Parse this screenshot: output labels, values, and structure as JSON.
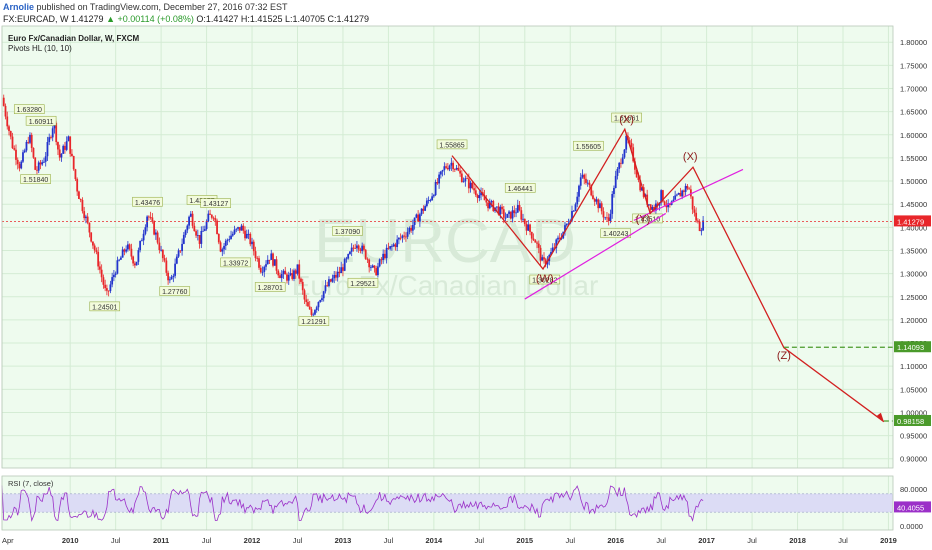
{
  "header": {
    "author": "Arnolie",
    "published": "published on TradingView.com, December 27, 2016 07:32 EST",
    "symbol_line": "FX:EURCAD, W  1.41279",
    "change": "▲ +0.00114 (+0.08%)",
    "ohlc": "O:1.41427 H:1.41525 L:1.40705 C:1.41279"
  },
  "legend": {
    "title": "Euro Fx/Canadian Dollar, W, FXCM",
    "indicator": "Pivots HL (10, 10)"
  },
  "watermark": {
    "symbol": "EURCAD",
    "name": "Euro Fx/Canadian Dollar"
  },
  "colors": {
    "chart_bg": "#eefbee",
    "up": "#2233cc",
    "down": "#e8262a",
    "wave": "#d22020",
    "trend": "#e020e0",
    "price_tag": "#e8262a",
    "target": "#4a9a2a",
    "rsi_line": "#9b30c8",
    "rsi_band": "#dcdcf5"
  },
  "chart_data": [
    {
      "type": "candlestick",
      "title": "Euro Fx/Canadian Dollar, W, FXCM",
      "price_scale": [
        0.9,
        1.8,
        0.05
      ],
      "y_ticks": [
        "1.80000",
        "1.75000",
        "1.70000",
        "1.65000",
        "1.60000",
        "1.55000",
        "1.50000",
        "1.45000",
        "1.40000",
        "1.35000",
        "1.30000",
        "1.25000",
        "1.20000",
        "1.15000",
        "1.10000",
        "1.05000",
        "1.00000",
        "0.95000",
        "0.90000"
      ],
      "x_ticks": [
        "Apr",
        "2010",
        "Jul",
        "2011",
        "Jul",
        "2012",
        "Jul",
        "2013",
        "Jul",
        "2014",
        "Jul",
        "2015",
        "Jul",
        "2016",
        "Jul",
        "2017",
        "Jul",
        "2018",
        "Jul",
        "2019"
      ],
      "close_path_anchors": [
        [
          2009.25,
          1.68
        ],
        [
          2009.36,
          1.58
        ],
        [
          2009.45,
          1.53
        ],
        [
          2009.55,
          1.6
        ],
        [
          2009.62,
          1.52
        ],
        [
          2009.72,
          1.55
        ],
        [
          2009.82,
          1.63
        ],
        [
          2009.88,
          1.55
        ],
        [
          2009.98,
          1.59
        ],
        [
          2010.08,
          1.48
        ],
        [
          2010.2,
          1.4
        ],
        [
          2010.3,
          1.33
        ],
        [
          2010.4,
          1.25
        ],
        [
          2010.5,
          1.31
        ],
        [
          2010.62,
          1.36
        ],
        [
          2010.72,
          1.32
        ],
        [
          2010.85,
          1.43
        ],
        [
          2010.95,
          1.38
        ],
        [
          2011.05,
          1.31
        ],
        [
          2011.1,
          1.28
        ],
        [
          2011.22,
          1.36
        ],
        [
          2011.32,
          1.43
        ],
        [
          2011.42,
          1.37
        ],
        [
          2011.52,
          1.42
        ],
        [
          2011.58,
          1.43
        ],
        [
          2011.66,
          1.35
        ],
        [
          2011.75,
          1.38
        ],
        [
          2011.88,
          1.4
        ],
        [
          2011.98,
          1.37
        ],
        [
          2012.1,
          1.31
        ],
        [
          2012.2,
          1.34
        ],
        [
          2012.3,
          1.3
        ],
        [
          2012.42,
          1.29
        ],
        [
          2012.5,
          1.31
        ],
        [
          2012.58,
          1.24
        ],
        [
          2012.65,
          1.21
        ],
        [
          2012.75,
          1.25
        ],
        [
          2012.85,
          1.28
        ],
        [
          2012.95,
          1.3
        ],
        [
          2013.05,
          1.33
        ],
        [
          2013.15,
          1.37
        ],
        [
          2013.25,
          1.34
        ],
        [
          2013.35,
          1.3
        ],
        [
          2013.45,
          1.34
        ],
        [
          2013.55,
          1.36
        ],
        [
          2013.65,
          1.38
        ],
        [
          2013.75,
          1.4
        ],
        [
          2013.85,
          1.43
        ],
        [
          2013.95,
          1.46
        ],
        [
          2014.05,
          1.5
        ],
        [
          2014.12,
          1.53
        ],
        [
          2014.2,
          1.54
        ],
        [
          2014.3,
          1.51
        ],
        [
          2014.4,
          1.49
        ],
        [
          2014.5,
          1.47
        ],
        [
          2014.6,
          1.45
        ],
        [
          2014.7,
          1.44
        ],
        [
          2014.8,
          1.42
        ],
        [
          2014.92,
          1.44
        ],
        [
          2015.0,
          1.41
        ],
        [
          2015.12,
          1.37
        ],
        [
          2015.2,
          1.32
        ],
        [
          2015.28,
          1.34
        ],
        [
          2015.36,
          1.37
        ],
        [
          2015.45,
          1.4
        ],
        [
          2015.55,
          1.45
        ],
        [
          2015.62,
          1.51
        ],
        [
          2015.7,
          1.49
        ],
        [
          2015.78,
          1.46
        ],
        [
          2015.86,
          1.43
        ],
        [
          2015.92,
          1.41
        ],
        [
          2015.98,
          1.49
        ],
        [
          2016.06,
          1.55
        ],
        [
          2016.12,
          1.59
        ],
        [
          2016.18,
          1.56
        ],
        [
          2016.25,
          1.5
        ],
        [
          2016.33,
          1.46
        ],
        [
          2016.42,
          1.44
        ],
        [
          2016.5,
          1.47
        ],
        [
          2016.58,
          1.44
        ],
        [
          2016.66,
          1.46
        ],
        [
          2016.74,
          1.48
        ],
        [
          2016.8,
          1.49
        ],
        [
          2016.86,
          1.43
        ],
        [
          2016.92,
          1.4
        ],
        [
          2016.98,
          1.41
        ]
      ],
      "last_price": 1.41279,
      "last_price_label": "1.41279"
    },
    {
      "type": "annotations",
      "pivot_labels": [
        "1.63280",
        "1.60911",
        "1.51840",
        "1.24501",
        "1.43476",
        "1.27760",
        "1.43877",
        "1.43127",
        "1.33972",
        "1.28701",
        "1.21291",
        "1.37090",
        "1.29521",
        "1.55865",
        "1.46441",
        "1.30282",
        "1.55605",
        "1.40243",
        "1.61661",
        "1.43510"
      ],
      "wave_labels": [
        "(X)",
        "(X)",
        "(W)",
        "(Y)",
        "(Z)"
      ],
      "targets": [
        {
          "value": 1.14093,
          "label": "1.14093"
        },
        {
          "value": 0.98158,
          "label": "0.98158"
        }
      ]
    },
    {
      "type": "line",
      "title": "RSI (7, close)",
      "y_ticks": [
        "80.0000",
        "0.0000"
      ],
      "y_range": [
        0,
        100
      ],
      "band": [
        30,
        70
      ],
      "last_value": 40.4055,
      "last_value_label": "40.4055"
    }
  ]
}
